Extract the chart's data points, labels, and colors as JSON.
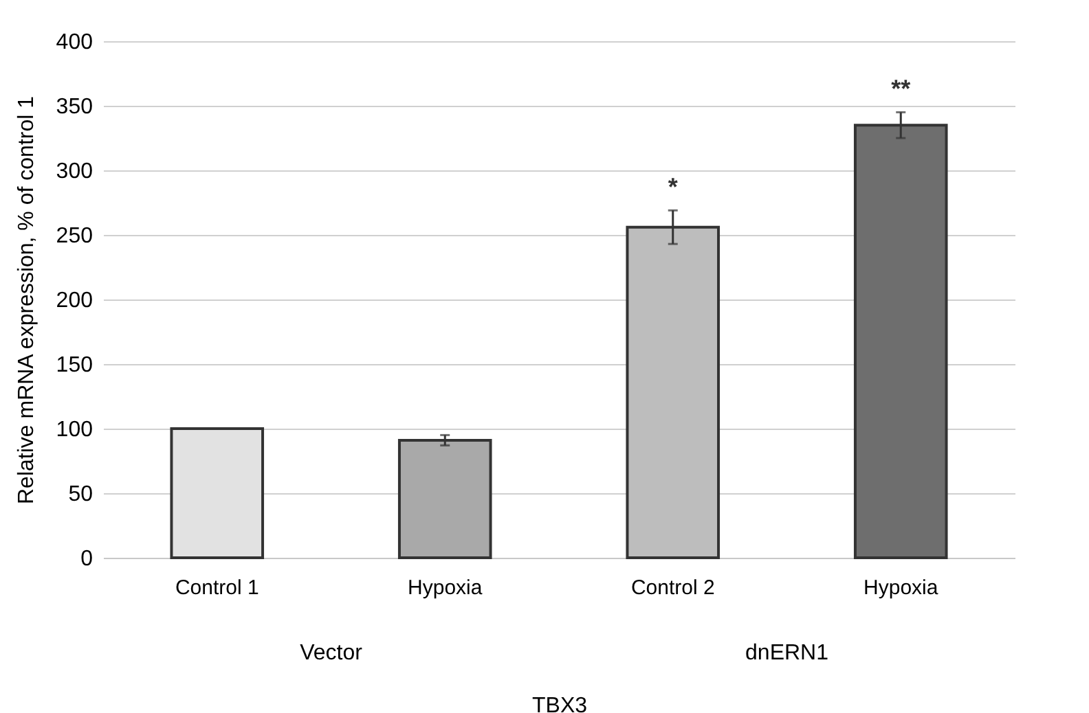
{
  "chart_data": {
    "type": "bar",
    "xlabel": "TBX3",
    "ylabel": "Relative mRNA expression, % of control 1",
    "categories": [
      "Control 1",
      "Hypoxia",
      "Control 2",
      "Hypoxia"
    ],
    "values": [
      100,
      91,
      256,
      335
    ],
    "errors": [
      null,
      4,
      13,
      10
    ],
    "colors": [
      "#e2e2e2",
      "#a9a9a9",
      "#bdbdbd",
      "#6e6e6e"
    ],
    "ylim": [
      0,
      400
    ],
    "yticks": [
      0,
      50,
      100,
      150,
      200,
      250,
      300,
      350,
      400
    ],
    "grid": "y",
    "annotations": [
      "*",
      "**",
      "Vector",
      "dnERN1"
    ]
  }
}
